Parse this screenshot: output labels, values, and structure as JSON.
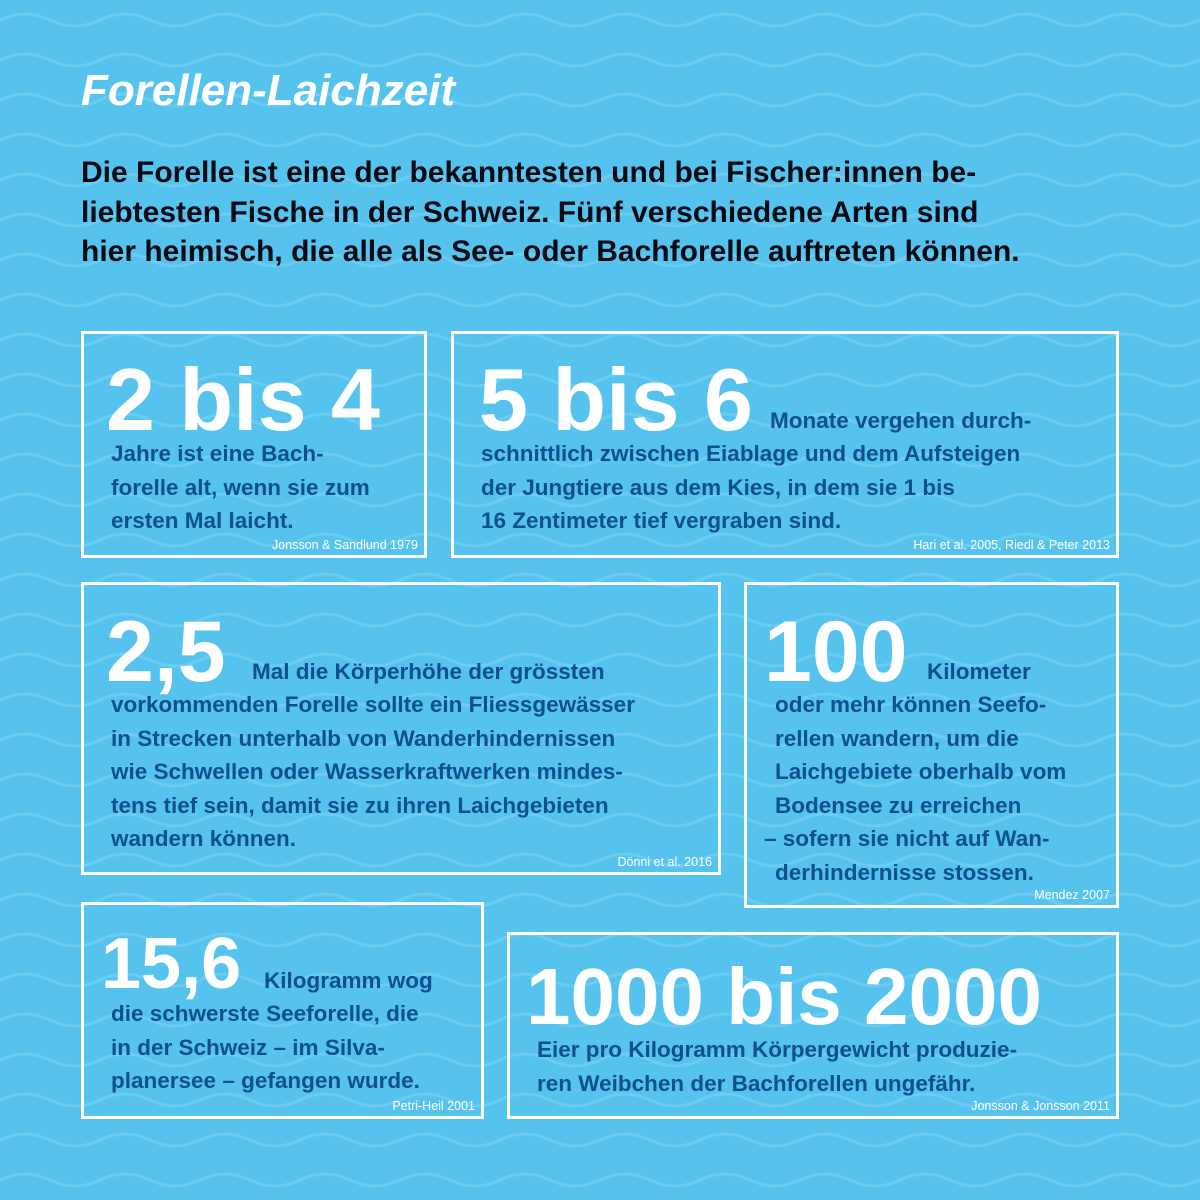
{
  "colors": {
    "background": "#56c3ee",
    "text_dark_blue": "#0d4f8f",
    "highlight": "#ffffff"
  },
  "title": "Forellen-Laichzeit",
  "intro": [
    "Die Forelle ist eine der bekanntesten und bei Fischer:innen be-",
    "liebtesten Fische in der Schweiz. Fünf verschiedene Arten sind",
    "hier heimisch, die alle als See- oder Bachforelle auftreten können."
  ],
  "facts": [
    {
      "number": "2 bis 4",
      "lead": "",
      "lines": [
        "Jahre ist eine Bach-",
        "forelle alt, wenn sie zum",
        "ersten Mal laicht."
      ],
      "source": "Jonsson & Sandlund 1979"
    },
    {
      "number": "5 bis 6",
      "lead": "Monate vergehen durch-",
      "lines": [
        "schnittlich zwischen Eiablage und dem Aufsteigen",
        "der Jungtiere aus dem Kies, in dem sie 1 bis",
        "16 Zentimeter tief vergraben sind."
      ],
      "source": "Hari et al. 2005, Riedl & Peter 2013"
    },
    {
      "number": "2,5",
      "lead": "Mal die Körperhöhe der grössten",
      "lines": [
        "vorkommenden Forelle sollte ein Fliessgewässer",
        "in Strecken unterhalb von Wanderhindernissen",
        "wie Schwellen oder Wasserkraftwerken mindes-",
        "tens tief sein, damit sie zu ihren Laichgebieten",
        "wandern können."
      ],
      "source": "Dönni et al. 2016"
    },
    {
      "number": "100",
      "lead": "Kilometer",
      "lines": [
        "oder mehr können Seefo-",
        "rellen wandern, um die",
        "Laichgebiete oberhalb vom",
        "Bodensee zu erreichen",
        "– sofern sie nicht auf Wan-",
        "derhindernisse stossen."
      ],
      "source": "Mendez 2007"
    },
    {
      "number": "15,6",
      "lead": "Kilogramm wog",
      "lines": [
        "die schwerste Seeforelle, die",
        "in der Schweiz  – im Silva-",
        "planersee – gefangen wurde."
      ],
      "source": "Petri-Heil 2001"
    },
    {
      "number": "1000 bis 2000",
      "lead": "",
      "lines": [
        "Eier pro Kilogramm Körpergewicht produzie-",
        "ren Weibchen der Bachforellen ungefähr."
      ],
      "source": "Jonsson & Jonsson 2011"
    }
  ]
}
